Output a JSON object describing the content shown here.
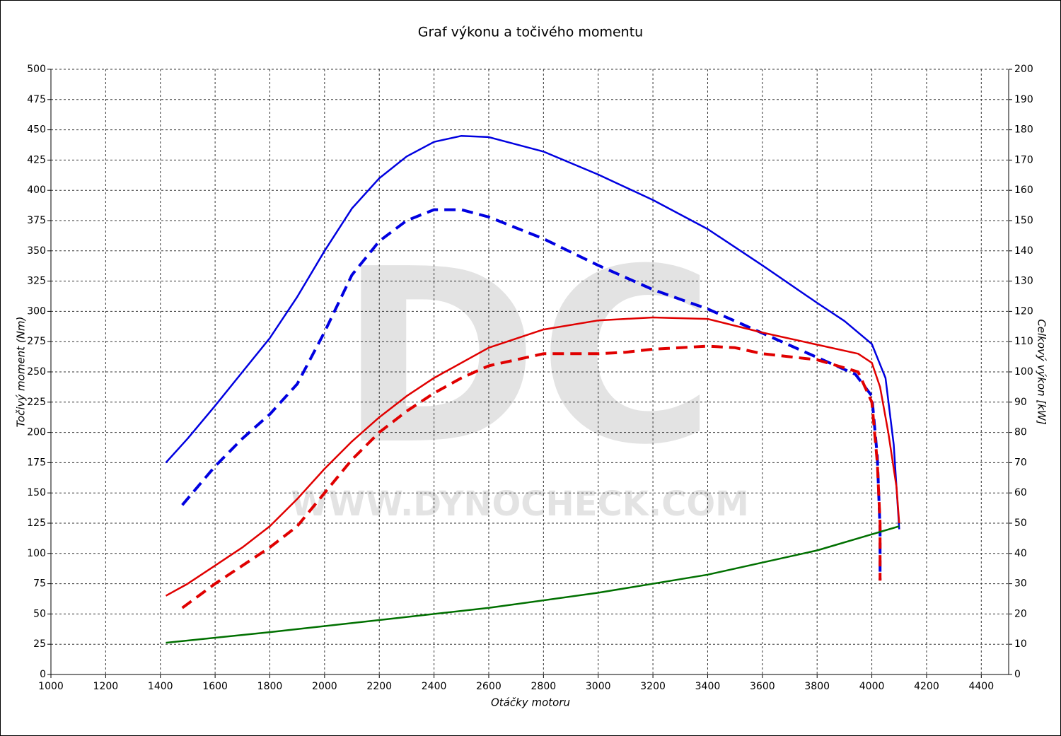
{
  "chart_data": {
    "type": "line",
    "title": "Graf výkonu a točivého momentu",
    "x_label": "Otáčky motoru",
    "y_label": "Točivý moment (Nm)",
    "y2_label": "Celkový výkon [kW]",
    "watermark": {
      "logo": "DC",
      "url": "WWW.DYNOCHECK.COM"
    },
    "xlim": [
      1000,
      4500
    ],
    "xticks": [
      1000,
      1200,
      1400,
      1600,
      1800,
      2000,
      2200,
      2400,
      2600,
      2800,
      3000,
      3200,
      3400,
      3600,
      3800,
      4000,
      4200,
      4400
    ],
    "ylim": [
      0,
      500
    ],
    "yticks": [
      0,
      25,
      50,
      75,
      100,
      125,
      150,
      175,
      200,
      225,
      250,
      275,
      300,
      325,
      350,
      375,
      400,
      425,
      450,
      475,
      500
    ],
    "y2lim": [
      0,
      200
    ],
    "y2ticks": [
      0,
      10,
      20,
      30,
      40,
      50,
      60,
      70,
      80,
      90,
      100,
      110,
      120,
      130,
      140,
      150,
      160,
      170,
      180,
      190,
      200
    ],
    "grid": true,
    "series": [
      {
        "color": "#0000e0",
        "dashed": false,
        "axis": "y",
        "x": [
          1420,
          1500,
          1600,
          1700,
          1800,
          1900,
          2000,
          2100,
          2200,
          2300,
          2400,
          2500,
          2600,
          2800,
          3000,
          3200,
          3400,
          3600,
          3800,
          3900,
          4000,
          4050,
          4080,
          4100
        ],
        "values": [
          175,
          195,
          222,
          250,
          278,
          312,
          350,
          385,
          410,
          428,
          440,
          445,
          444,
          432,
          413,
          392,
          368,
          338,
          307,
          292,
          273,
          245,
          190,
          120
        ]
      },
      {
        "color": "#0000e0",
        "dashed": true,
        "axis": "y",
        "x": [
          1480,
          1600,
          1700,
          1800,
          1900,
          2000,
          2100,
          2200,
          2300,
          2400,
          2500,
          2600,
          2800,
          3000,
          3200,
          3400,
          3600,
          3800,
          3940,
          4000,
          4020,
          4030,
          4030
        ],
        "values": [
          140,
          172,
          195,
          215,
          240,
          283,
          330,
          358,
          375,
          384,
          384,
          378,
          360,
          338,
          318,
          302,
          282,
          262,
          248,
          230,
          180,
          120,
          78
        ]
      },
      {
        "color": "#e00000",
        "dashed": false,
        "axis": "y2",
        "x": [
          1420,
          1500,
          1600,
          1700,
          1800,
          1900,
          2000,
          2100,
          2200,
          2300,
          2400,
          2600,
          2800,
          3000,
          3200,
          3400,
          3600,
          3800,
          3950,
          4000,
          4030,
          4060,
          4090,
          4100
        ],
        "values": [
          26,
          30,
          36,
          42,
          49,
          58,
          68,
          77,
          85,
          92,
          98,
          108,
          114,
          117,
          118,
          117.5,
          113,
          109,
          106,
          103,
          95,
          80,
          62,
          50
        ]
      },
      {
        "color": "#e00000",
        "dashed": true,
        "axis": "y2",
        "x": [
          1480,
          1600,
          1700,
          1800,
          1900,
          2000,
          2100,
          2200,
          2300,
          2400,
          2500,
          2600,
          2800,
          3000,
          3100,
          3200,
          3400,
          3500,
          3600,
          3800,
          3950,
          4000,
          4020,
          4030,
          4030
        ],
        "values": [
          22,
          30,
          36,
          42,
          49,
          60,
          71,
          80,
          87,
          93,
          98,
          102,
          106,
          106,
          106.5,
          107.5,
          108.5,
          108,
          106,
          104,
          100,
          90,
          70,
          50,
          31
        ]
      },
      {
        "color": "#007000",
        "dashed": false,
        "axis": "y2",
        "x": [
          1420,
          1800,
          2200,
          2600,
          3000,
          3400,
          3800,
          4100
        ],
        "values": [
          10.5,
          14,
          18,
          22,
          27,
          33,
          41,
          49
        ]
      }
    ]
  }
}
